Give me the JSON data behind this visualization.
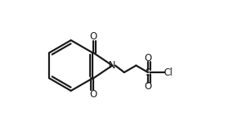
{
  "bg_color": "#ffffff",
  "bond_color": "#1a1a1a",
  "text_color": "#1a1a1a",
  "lw": 1.6,
  "figsize": [
    2.86,
    1.63
  ],
  "dpi": 100,
  "atoms": {
    "N": {
      "label": "N"
    },
    "O1": {
      "label": "O"
    },
    "O2": {
      "label": "O"
    },
    "S": {
      "label": "S"
    },
    "Os1": {
      "label": "O"
    },
    "Os2": {
      "label": "O"
    },
    "Cl": {
      "label": "Cl"
    }
  },
  "fontsize": 8.5
}
